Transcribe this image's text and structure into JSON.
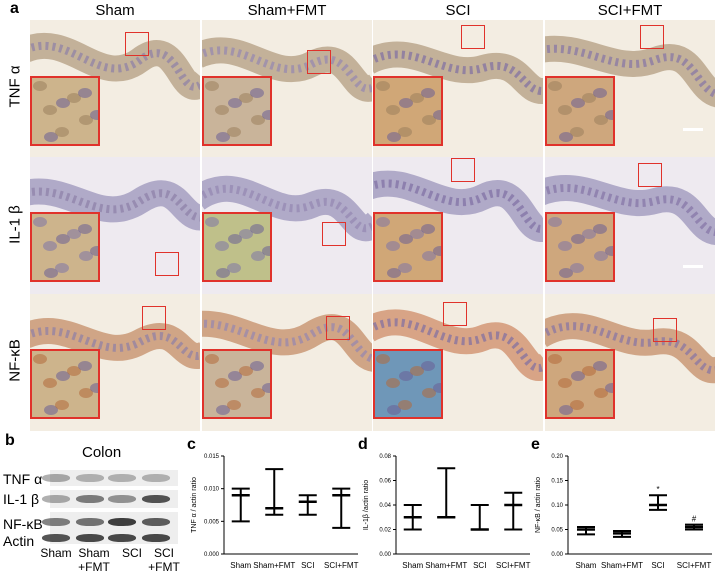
{
  "panel_a": {
    "letter": "a",
    "columns": [
      "Sham",
      "Sham+FMT",
      "SCI",
      "SCI+FMT"
    ],
    "rows": [
      "TNF α",
      "IL-1 β",
      "NF-κB"
    ],
    "roi_color": "#e0322b"
  },
  "panel_b": {
    "letter": "b",
    "title": "Colon",
    "proteins": [
      "TNF α",
      "IL-1 β",
      "NF-κB",
      "Actin"
    ],
    "lanes": [
      [
        "Sham",
        ""
      ],
      [
        "Sham",
        "+FMT"
      ],
      [
        "SCI",
        ""
      ],
      [
        "SCI",
        "+FMT"
      ]
    ]
  },
  "chart_data": [
    {
      "panel": "c",
      "type": "boxplot",
      "categories": [
        "Sham",
        "Sham+FMT",
        "SCI",
        "SCI+FMT"
      ],
      "series": [
        {
          "min": [
            0.005,
            0.006,
            0.006,
            0.004
          ],
          "median": [
            0.009,
            0.007,
            0.008,
            0.009
          ],
          "max": [
            0.01,
            0.013,
            0.009,
            0.01
          ]
        }
      ],
      "ylabel": "TNF α / actin ratio",
      "ylim": [
        0,
        0.015
      ],
      "yticks": [
        "0.000",
        "0.005",
        "0.010",
        "0.015"
      ],
      "annotations": []
    },
    {
      "panel": "d",
      "type": "boxplot",
      "categories": [
        "Sham",
        "Sham+FMT",
        "SCI",
        "SCI+FMT"
      ],
      "series": [
        {
          "min": [
            0.02,
            0.03,
            0.02,
            0.02
          ],
          "median": [
            0.03,
            0.03,
            0.02,
            0.04
          ],
          "max": [
            0.04,
            0.07,
            0.04,
            0.05
          ]
        }
      ],
      "ylabel": "IL-1β /actin ratio",
      "ylim": [
        0,
        0.08
      ],
      "yticks": [
        "0.00",
        "0.02",
        "0.04",
        "0.06",
        "0.08"
      ],
      "annotations": []
    },
    {
      "panel": "e",
      "type": "boxplot",
      "categories": [
        "Sham",
        "Sham+FMT",
        "SCI",
        "SCI+FMT"
      ],
      "series": [
        {
          "min": [
            0.04,
            0.035,
            0.09,
            0.05
          ],
          "median": [
            0.05,
            0.042,
            0.1,
            0.055
          ],
          "max": [
            0.055,
            0.047,
            0.12,
            0.06
          ]
        }
      ],
      "ylabel": "NF-κB / actin ratio",
      "ylim": [
        0,
        0.2
      ],
      "yticks": [
        "0.00",
        "0.05",
        "0.10",
        "0.15",
        "0.20"
      ],
      "annotations": [
        {
          "category": "SCI",
          "text": "*"
        },
        {
          "category": "SCI+FMT",
          "text": "#"
        }
      ]
    }
  ]
}
